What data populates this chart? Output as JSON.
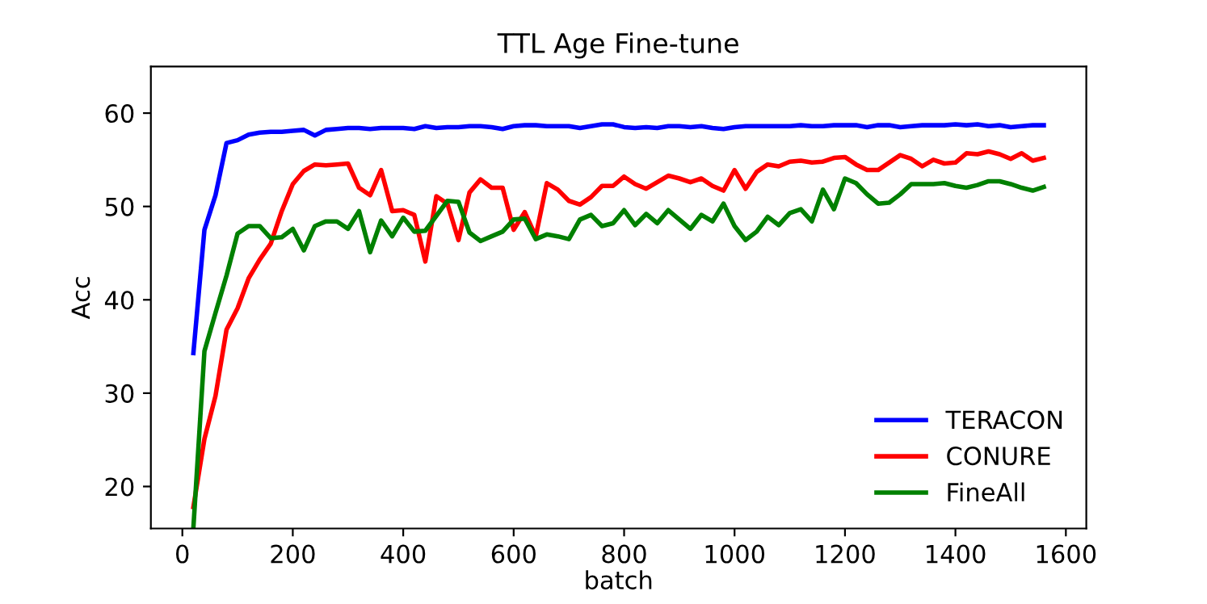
{
  "chart_data": {
    "type": "line",
    "title": "TTL Age Fine-tune",
    "xlabel": "batch",
    "ylabel": "Acc",
    "x": [
      20,
      40,
      60,
      80,
      100,
      120,
      140,
      160,
      180,
      200,
      220,
      240,
      260,
      280,
      300,
      320,
      340,
      360,
      380,
      400,
      420,
      440,
      460,
      480,
      500,
      520,
      540,
      560,
      580,
      600,
      620,
      640,
      660,
      680,
      700,
      720,
      740,
      760,
      780,
      800,
      820,
      840,
      860,
      880,
      900,
      920,
      940,
      960,
      980,
      1000,
      1020,
      1040,
      1060,
      1080,
      1100,
      1120,
      1140,
      1160,
      1180,
      1200,
      1220,
      1240,
      1260,
      1280,
      1300,
      1320,
      1340,
      1360,
      1380,
      1400,
      1420,
      1440,
      1460,
      1480,
      1500,
      1520,
      1540,
      1560
    ],
    "series": [
      {
        "name": "TERACON",
        "color": "#0000ff",
        "values": [
          34.3,
          47.5,
          51.2,
          56.8,
          57.1,
          57.7,
          57.9,
          58.0,
          58.0,
          58.1,
          58.2,
          57.6,
          58.2,
          58.3,
          58.4,
          58.4,
          58.3,
          58.4,
          58.4,
          58.4,
          58.3,
          58.6,
          58.4,
          58.5,
          58.5,
          58.6,
          58.6,
          58.5,
          58.3,
          58.6,
          58.7,
          58.7,
          58.6,
          58.6,
          58.6,
          58.4,
          58.6,
          58.8,
          58.8,
          58.5,
          58.4,
          58.5,
          58.4,
          58.6,
          58.6,
          58.5,
          58.6,
          58.4,
          58.3,
          58.5,
          58.6,
          58.6,
          58.6,
          58.6,
          58.6,
          58.7,
          58.6,
          58.6,
          58.7,
          58.7,
          58.7,
          58.5,
          58.7,
          58.7,
          58.5,
          58.6,
          58.7,
          58.7,
          58.7,
          58.8,
          58.7,
          58.8,
          58.6,
          58.7,
          58.5,
          58.6,
          58.7,
          58.7
        ]
      },
      {
        "name": "CONURE",
        "color": "#ff0000",
        "values": [
          17.8,
          25.1,
          29.7,
          36.8,
          39.1,
          42.3,
          44.3,
          46.0,
          49.5,
          52.4,
          53.8,
          54.5,
          54.4,
          54.5,
          54.6,
          52.0,
          51.2,
          53.9,
          49.5,
          49.6,
          49.1,
          44.1,
          51.1,
          50.3,
          46.4,
          51.5,
          52.9,
          52.0,
          52.0,
          47.5,
          49.4,
          46.8,
          52.5,
          51.8,
          50.6,
          50.2,
          51.0,
          52.2,
          52.2,
          53.2,
          52.4,
          51.9,
          52.6,
          53.3,
          53.0,
          52.6,
          53.0,
          52.2,
          51.7,
          53.9,
          51.9,
          53.7,
          54.5,
          54.3,
          54.8,
          54.9,
          54.7,
          54.8,
          55.2,
          55.3,
          54.5,
          53.9,
          53.9,
          54.7,
          55.5,
          55.1,
          54.3,
          55.0,
          54.6,
          54.7,
          55.7,
          55.6,
          55.9,
          55.6,
          55.1,
          55.7,
          54.9,
          55.2
        ]
      },
      {
        "name": "FineAll",
        "color": "#008000",
        "values": [
          15.6,
          34.5,
          38.6,
          42.6,
          47.1,
          47.9,
          47.9,
          46.6,
          46.7,
          47.6,
          45.3,
          47.9,
          48.4,
          48.4,
          47.6,
          49.5,
          45.1,
          48.5,
          46.8,
          48.8,
          47.3,
          47.4,
          49.0,
          50.6,
          50.5,
          47.2,
          46.3,
          46.8,
          47.3,
          48.6,
          48.7,
          46.5,
          47.0,
          46.8,
          46.5,
          48.6,
          49.1,
          47.9,
          48.2,
          49.6,
          48.0,
          49.2,
          48.2,
          49.6,
          48.6,
          47.6,
          49.1,
          48.4,
          50.3,
          47.9,
          46.4,
          47.3,
          48.9,
          48.0,
          49.3,
          49.7,
          48.4,
          51.8,
          49.7,
          53.0,
          52.5,
          51.3,
          50.3,
          50.4,
          51.3,
          52.4,
          52.4,
          52.4,
          52.5,
          52.2,
          52.0,
          52.3,
          52.7,
          52.7,
          52.4,
          52.0,
          51.7,
          52.1
        ]
      }
    ],
    "xlim": [
      -57,
      1637
    ],
    "ylim": [
      15.5,
      65
    ],
    "xticks": [
      0,
      200,
      400,
      600,
      800,
      1000,
      1200,
      1400,
      1600
    ],
    "yticks": [
      20,
      30,
      40,
      50,
      60
    ],
    "grid": false,
    "legend": "bottom right",
    "marker": "none",
    "line_style": "solid"
  }
}
